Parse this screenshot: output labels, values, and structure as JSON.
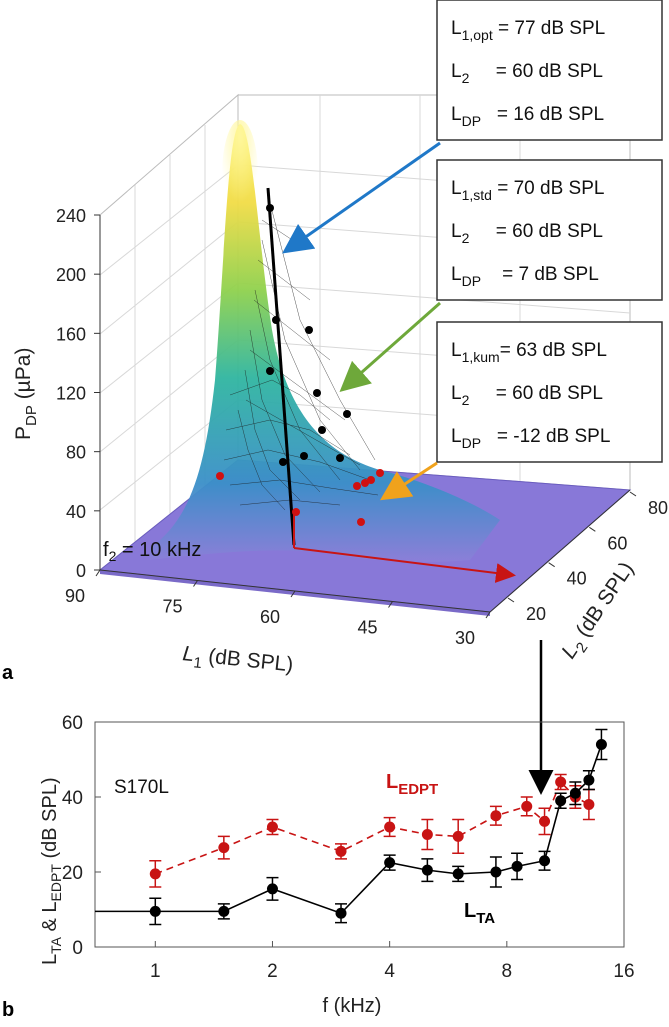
{
  "chart_data": [
    {
      "panel": "a",
      "type": "surface3d",
      "zlabel": "P_DP (µPa)",
      "xlabel": "L_1 (dB SPL)",
      "ylabel": "L_2 (dB SPL)",
      "zticks": [
        0,
        40,
        80,
        120,
        160,
        200,
        240
      ],
      "xticks": [
        90,
        75,
        60,
        45,
        30
      ],
      "yticks": [
        20,
        40,
        60,
        80
      ],
      "annotation": "f_2 = 10 kHz",
      "boxes": [
        {
          "name": "opt",
          "lines": [
            {
              "sym": "L",
              "sub": "1,opt",
              "val": " = 77 dB SPL"
            },
            {
              "sym": "L",
              "sub": "2",
              "val": "     = 60 dB SPL"
            },
            {
              "sym": "L",
              "sub": "DP",
              "val": "   = 16 dB SPL"
            }
          ],
          "arrow_color": "#1f78c8"
        },
        {
          "name": "std",
          "lines": [
            {
              "sym": "L",
              "sub": "1,std",
              "val": " = 70 dB SPL"
            },
            {
              "sym": "L",
              "sub": "2",
              "val": "     = 60 dB SPL"
            },
            {
              "sym": "L",
              "sub": "DP",
              "val": "    = 7 dB SPL"
            }
          ],
          "arrow_color": "#6ea83a"
        },
        {
          "name": "kum",
          "lines": [
            {
              "sym": "L",
              "sub": "1,kum",
              "val": "= 63 dB SPL"
            },
            {
              "sym": "L",
              "sub": "2",
              "val": "     = 60 dB SPL"
            },
            {
              "sym": "L",
              "sub": "DP",
              "val": "   = -12 dB SPL"
            }
          ],
          "arrow_color": "#f0a21c"
        }
      ]
    },
    {
      "panel": "b",
      "type": "line",
      "xlabel": "f (kHz)",
      "ylabel": "L_TA & L_EDPT (dB SPL)",
      "xscale": "log2",
      "xticks": [
        1,
        2,
        4,
        8,
        16
      ],
      "yticks": [
        0,
        20,
        40,
        60
      ],
      "ylim": [
        0,
        60
      ],
      "xlim": [
        0.7,
        16
      ],
      "subject": "S170L",
      "series": [
        {
          "name": "L_EDPT",
          "color": "#c81414",
          "style": "dashed",
          "x": [
            1,
            1.5,
            2,
            3,
            4,
            5,
            6,
            7.5,
            9,
            10,
            11,
            12,
            13
          ],
          "y": [
            19.5,
            26.5,
            32,
            25.5,
            32,
            30,
            29.5,
            35,
            37.5,
            33.5,
            44,
            40,
            38
          ],
          "err": [
            3.5,
            3,
            2,
            2,
            2.5,
            4,
            4.5,
            2.5,
            2.5,
            3.5,
            2,
            3,
            4
          ]
        },
        {
          "name": "L_TA",
          "color": "#000000",
          "style": "solid",
          "x": [
            0.7,
            1,
            1.5,
            2,
            3,
            4,
            5,
            6,
            7.5,
            8.5,
            10,
            11,
            12,
            13,
            14
          ],
          "y": [
            9.5,
            9.5,
            9.5,
            15.5,
            9,
            22.5,
            20.5,
            19.5,
            20,
            21.5,
            23,
            39,
            41,
            44.5,
            54
          ],
          "err": [
            null,
            3.5,
            2,
            3,
            2.5,
            2,
            3,
            2,
            4,
            3.5,
            2.5,
            2,
            3,
            2.5,
            4
          ]
        }
      ]
    }
  ],
  "labels": {
    "zaxis_title_main": "P",
    "zaxis_title_sub": "DP",
    "zaxis_title_unit": " (µPa)",
    "xaxis_title_main": "L",
    "xaxis_title_sub": "1",
    "xaxis_title_unit": " (dB SPL)",
    "yaxis_title_main": "L",
    "yaxis_title_sub": "2",
    "yaxis_title_unit": " (dB SPL)",
    "f2_main": "f",
    "f2_sub": "2",
    "f2_rest": " = 10 kHz",
    "panel_a": "a",
    "panel_b": "b",
    "b_ylabel_l1": "L",
    "b_ylabel_s1": "TA",
    "b_ylabel_mid": " & L",
    "b_ylabel_s2": "EDPT",
    "b_ylabel_unit": " (dB SPL)",
    "b_xlabel": "f (kHz)",
    "subject": "S170L",
    "edpt_main": "L",
    "edpt_sub": "EDPT",
    "ta_main": "L",
    "ta_sub": "TA"
  }
}
